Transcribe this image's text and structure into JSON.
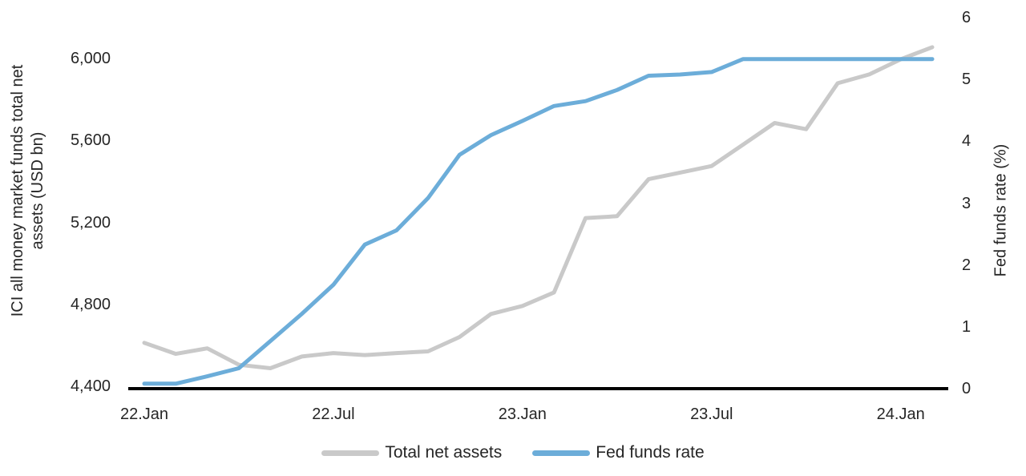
{
  "chart_data": {
    "type": "line",
    "title": "",
    "grid": "off",
    "legend_position": "bottom-center",
    "x": [
      "Jan 2022",
      "Feb 2022",
      "Mar 2022",
      "Apr 2022",
      "May 2022",
      "Jun 2022",
      "Jul 2022",
      "Aug 2022",
      "Sep 2022",
      "Oct 2022",
      "Nov 2022",
      "Dec 2022",
      "Jan 2023",
      "Feb 2023",
      "Mar 2023",
      "Apr 2023",
      "May 2023",
      "Jun 2023",
      "Jul 2023",
      "Aug 2023",
      "Sep 2023",
      "Oct 2023",
      "Nov 2023",
      "Dec 2023",
      "Jan 2024",
      "Feb 2024"
    ],
    "x_tick_labels": [
      "22.Jan",
      "22.Jul",
      "23.Jan",
      "23.Jul",
      "24.Jan"
    ],
    "x_tick_month_index": [
      0,
      6,
      12,
      18,
      24
    ],
    "left_axis": {
      "label": "ICI all money market funds total net assets (USD bn)",
      "tick_labels": [
        "4,400",
        "4,800",
        "5,200",
        "5,600",
        "6,000"
      ],
      "tick_values": [
        4400,
        4800,
        5200,
        5600,
        6000
      ],
      "min": 4400,
      "max": 6000
    },
    "right_axis": {
      "label": "Fed funds rate (%)",
      "tick_labels": [
        "0",
        "1",
        "2",
        "3",
        "4",
        "5",
        "6"
      ],
      "tick_values": [
        0,
        1,
        2,
        3,
        4,
        5,
        6
      ],
      "min": 0,
      "max": 6
    },
    "series": [
      {
        "name": "Total net assets",
        "axis": "left",
        "color": "#C9C9C9",
        "values": [
          4612,
          4558,
          4585,
          4505,
          4488,
          4545,
          4562,
          4552,
          4562,
          4570,
          4640,
          4753,
          4792,
          4858,
          5221,
          5230,
          5411,
          5443,
          5475,
          5580,
          5685,
          5655,
          5879,
          5922,
          5996,
          6055
        ]
      },
      {
        "name": "Fed funds rate",
        "axis": "right",
        "color": "#6CADD9",
        "values": [
          0.08,
          0.08,
          0.2,
          0.33,
          0.77,
          1.21,
          1.68,
          2.33,
          2.56,
          3.08,
          3.78,
          4.1,
          4.33,
          4.57,
          4.65,
          4.83,
          5.06,
          5.08,
          5.12,
          5.33,
          5.33,
          5.33,
          5.33,
          5.33,
          5.33,
          5.33
        ]
      }
    ],
    "legend": [
      {
        "label": "Total net assets",
        "color": "#C9C9C9"
      },
      {
        "label": "Fed funds rate",
        "color": "#6CADD9"
      }
    ]
  },
  "labels": {
    "left_axis_line1": "ICI all money market funds total net",
    "left_axis_line2": "assets (USD bn)",
    "right_axis": "Fed funds rate (%)"
  },
  "colors": {
    "background": "#FFFFFF",
    "text": "#262626",
    "axis_line": "#000000",
    "total_net_assets": "#C9C9C9",
    "fed_funds_rate": "#6CADD9"
  }
}
